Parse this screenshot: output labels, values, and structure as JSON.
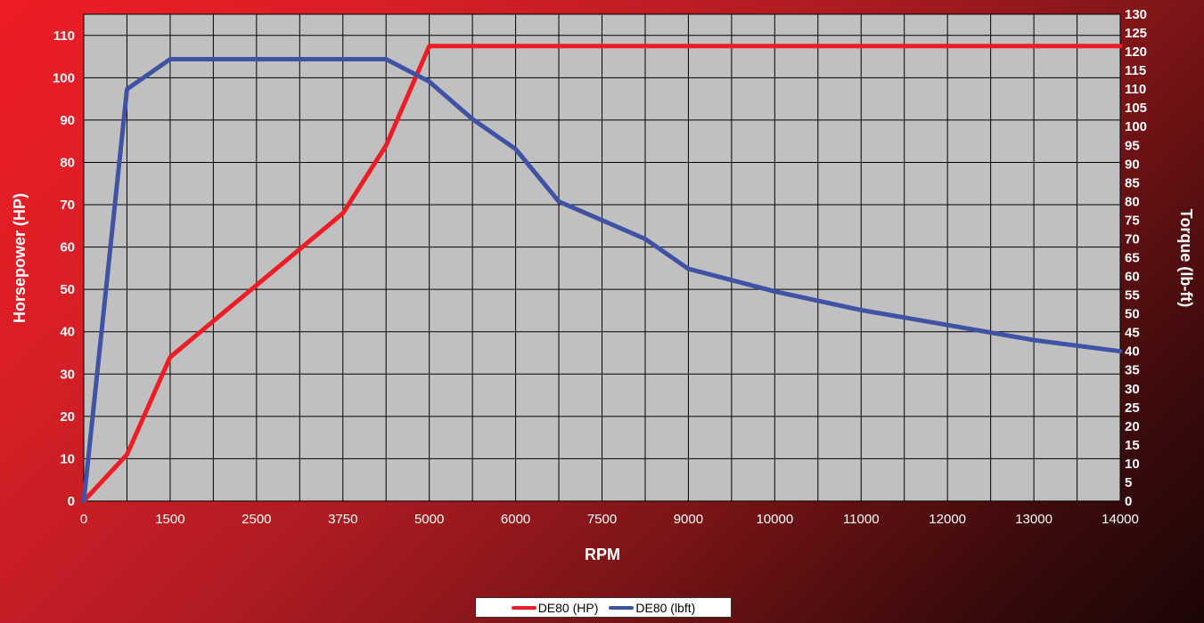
{
  "chart_data": {
    "type": "line",
    "xlabel": "RPM",
    "ylabel": "Horsepower (HP)",
    "y2label": "Torque (lb-ft)",
    "x_tick_labels": [
      "0",
      "1500",
      "2500",
      "3750",
      "5000",
      "6000",
      "7500",
      "9000",
      "10000",
      "11000",
      "12000",
      "13000",
      "14000"
    ],
    "x_category_span": [
      0,
      12
    ],
    "ylim": [
      0,
      115
    ],
    "yticks": [
      0,
      10,
      20,
      30,
      40,
      50,
      60,
      70,
      80,
      90,
      100,
      110
    ],
    "y2lim": [
      0,
      130
    ],
    "y2ticks": [
      0,
      5,
      10,
      15,
      20,
      25,
      30,
      35,
      40,
      45,
      50,
      55,
      60,
      65,
      70,
      75,
      80,
      85,
      90,
      95,
      100,
      105,
      110,
      115,
      120,
      125,
      130
    ],
    "grid": true,
    "legend_position": "bottom",
    "series": [
      {
        "name": "DE80 (HP)",
        "axis": "left",
        "color": "#ee1c25",
        "x": [
          0,
          0.5,
          1,
          2,
          3,
          3.5,
          4,
          12
        ],
        "values": [
          0,
          11,
          34,
          51,
          68,
          84,
          107.5,
          107.5
        ]
      },
      {
        "name": "DE80 (lbft)",
        "axis": "right",
        "color": "#3f52a4",
        "x": [
          0,
          0.5,
          1,
          2,
          3,
          3.5,
          4,
          4.5,
          5,
          5.5,
          6,
          6.5,
          7,
          7.5,
          8,
          9,
          10,
          11,
          12
        ],
        "values": [
          0,
          110,
          118,
          118,
          118,
          118,
          112,
          102,
          94,
          80,
          75,
          70,
          62,
          59,
          56,
          51,
          47,
          43,
          40
        ]
      }
    ]
  },
  "legend": {
    "hp_label": "DE80 (HP)",
    "torque_label": "DE80 (lbft)"
  }
}
